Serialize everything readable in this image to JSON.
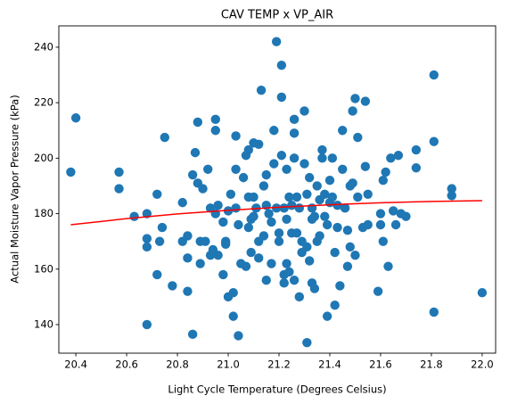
{
  "chart_data": {
    "type": "scatter",
    "title": "CAV TEMP x VP_AIR",
    "x_label": "Light Cycle Temperature (Degrees Celsius)",
    "y_label": "Actual Moisture Vapor Pressure (kPa)",
    "xlim": [
      20.333,
      22.053
    ],
    "ylim": [
      129.7,
      247.7
    ],
    "xticks": [
      20.4,
      20.6,
      20.8,
      {
        "value": 21.0,
        "label": "21.0"
      },
      21.2,
      21.4,
      21.6,
      21.8,
      {
        "value": 22.0,
        "label": "22.0"
      }
    ],
    "yticks": [
      140,
      160,
      180,
      200,
      220,
      240
    ],
    "grid": false,
    "series": [
      {
        "type": "scatter",
        "color": "#1f77b4",
        "x": [
          20.38,
          20.4,
          20.57,
          20.57,
          20.63,
          20.68,
          20.68,
          20.68,
          20.68,
          20.72,
          20.72,
          20.73,
          20.74,
          20.75,
          20.78,
          20.82,
          20.82,
          20.84,
          20.84,
          20.84,
          20.86,
          20.86,
          20.87,
          20.88,
          20.88,
          20.89,
          20.89,
          20.9,
          20.91,
          20.92,
          20.93,
          20.93,
          20.94,
          20.95,
          20.95,
          20.95,
          20.96,
          20.96,
          20.98,
          20.98,
          20.99,
          20.99,
          21.0,
          21.0,
          21.01,
          21.02,
          21.02,
          21.03,
          21.03,
          21.03,
          21.04,
          21.04,
          21.05,
          21.06,
          21.07,
          21.08,
          21.07,
          21.08,
          21.08,
          21.09,
          21.09,
          21.1,
          21.1,
          21.1,
          21.11,
          21.12,
          21.12,
          21.12,
          21.13,
          21.14,
          21.14,
          21.15,
          21.15,
          21.15,
          21.16,
          21.17,
          21.17,
          21.18,
          21.18,
          21.19,
          21.19,
          21.2,
          21.2,
          21.21,
          21.21,
          21.21,
          21.22,
          21.22,
          21.22,
          21.23,
          21.23,
          21.23,
          21.24,
          21.24,
          21.25,
          21.25,
          21.26,
          21.26,
          21.26,
          21.26,
          21.27,
          21.27,
          21.28,
          21.28,
          21.29,
          21.29,
          21.3,
          21.3,
          21.31,
          21.31,
          21.31,
          21.32,
          21.32,
          21.33,
          21.33,
          21.33,
          21.34,
          21.34,
          21.35,
          21.35,
          21.36,
          21.36,
          21.37,
          21.37,
          21.38,
          21.38,
          21.39,
          21.39,
          21.4,
          21.4,
          21.41,
          21.41,
          21.42,
          21.42,
          21.43,
          21.43,
          21.44,
          21.45,
          21.45,
          21.46,
          21.47,
          21.47,
          21.48,
          21.48,
          21.49,
          21.49,
          21.5,
          21.5,
          21.51,
          21.51,
          21.53,
          21.54,
          21.54,
          21.55,
          21.55,
          21.59,
          21.6,
          21.6,
          21.61,
          21.61,
          21.62,
          21.63,
          21.64,
          21.65,
          21.66,
          21.67,
          21.68,
          21.7,
          21.74,
          21.74,
          21.81,
          21.81,
          21.81,
          21.88,
          21.88,
          22.0
        ],
        "values": [
          195,
          214.5,
          195,
          189,
          179,
          180,
          171,
          168,
          140,
          187,
          158,
          170,
          175,
          207.5,
          154,
          184,
          170,
          172,
          164,
          152,
          194,
          136.5,
          202,
          213,
          191,
          170,
          162,
          189,
          170,
          196,
          165,
          182,
          167,
          214,
          210,
          180,
          183,
          165,
          177,
          158,
          170,
          169,
          181,
          150,
          187,
          151.5,
          143,
          208,
          196,
          182,
          176,
          136,
          162,
          193,
          201,
          203,
          161,
          186,
          175,
          178,
          166,
          205.5,
          186,
          179,
          182,
          205,
          170,
          164,
          224.5,
          190,
          172,
          194,
          183,
          156,
          180,
          177,
          162,
          210,
          198,
          242,
          182,
          173,
          170,
          233.5,
          222,
          201,
          182,
          158,
          155,
          162,
          178,
          196,
          186,
          159,
          173,
          183,
          209,
          214,
          200,
          156,
          173,
          186,
          182,
          150,
          170,
          166,
          217,
          198,
          187,
          168,
          133.5,
          193,
          163,
          182,
          178,
          155,
          179,
          153,
          190,
          170,
          172,
          185,
          203,
          200,
          187,
          179,
          143,
          176,
          192,
          184,
          200,
          186,
          166,
          147,
          183,
          175,
          154,
          210,
          196,
          182,
          174,
          161,
          190,
          168,
          217,
          191,
          221.5,
          165,
          207.5,
          186,
          175,
          220.5,
          197,
          187,
          176,
          152,
          180,
          176,
          192,
          170,
          195,
          161,
          200,
          181,
          176,
          201,
          180,
          179,
          203,
          196.5,
          230,
          206,
          144.5,
          189,
          186.5,
          151.5
        ]
      },
      {
        "type": "line",
        "color": "#ff0000",
        "x": [
          20.38,
          20.6,
          20.8,
          21.0,
          21.2,
          21.4,
          21.6,
          21.8,
          22.0
        ],
        "values": [
          176,
          178.2,
          179.9,
          181.2,
          182.3,
          183.2,
          183.9,
          184.4,
          184.7
        ]
      }
    ]
  }
}
